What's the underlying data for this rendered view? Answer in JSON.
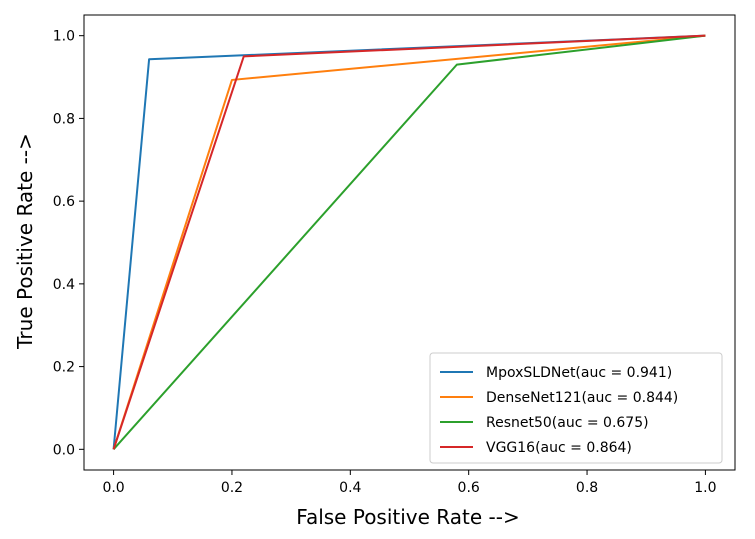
{
  "chart_data": {
    "type": "line",
    "title": "",
    "xlabel": "False Positive Rate -->",
    "ylabel": "True Positive Rate -->",
    "xlim": [
      -0.05,
      1.05
    ],
    "ylim": [
      -0.05,
      1.05
    ],
    "xticks": [
      0.0,
      0.2,
      0.4,
      0.6,
      0.8,
      1.0
    ],
    "xtick_labels": [
      "0.0",
      "0.2",
      "0.4",
      "0.6",
      "0.8",
      "1.0"
    ],
    "yticks": [
      0.0,
      0.2,
      0.4,
      0.6,
      0.8,
      1.0
    ],
    "ytick_labels": [
      "0.0",
      "0.2",
      "0.4",
      "0.6",
      "0.8",
      "1.0"
    ],
    "grid": false,
    "legend_position": "lower-right",
    "series": [
      {
        "name": "MpoxSLDNet(auc = 0.941)",
        "color": "#1f77b4",
        "x": [
          0.0,
          0.06,
          1.0
        ],
        "y": [
          0.0,
          0.943,
          1.0
        ]
      },
      {
        "name": "DenseNet121(auc = 0.844)",
        "color": "#ff7f0e",
        "x": [
          0.0,
          0.2,
          1.0
        ],
        "y": [
          0.0,
          0.893,
          1.0
        ]
      },
      {
        "name": "Resnet50(auc = 0.675)",
        "color": "#2ca02c",
        "x": [
          0.0,
          0.58,
          1.0
        ],
        "y": [
          0.0,
          0.93,
          1.0
        ]
      },
      {
        "name": "VGG16(auc = 0.864)",
        "color": "#d62728",
        "x": [
          0.0,
          0.22,
          1.0
        ],
        "y": [
          0.0,
          0.95,
          1.0
        ]
      }
    ]
  }
}
